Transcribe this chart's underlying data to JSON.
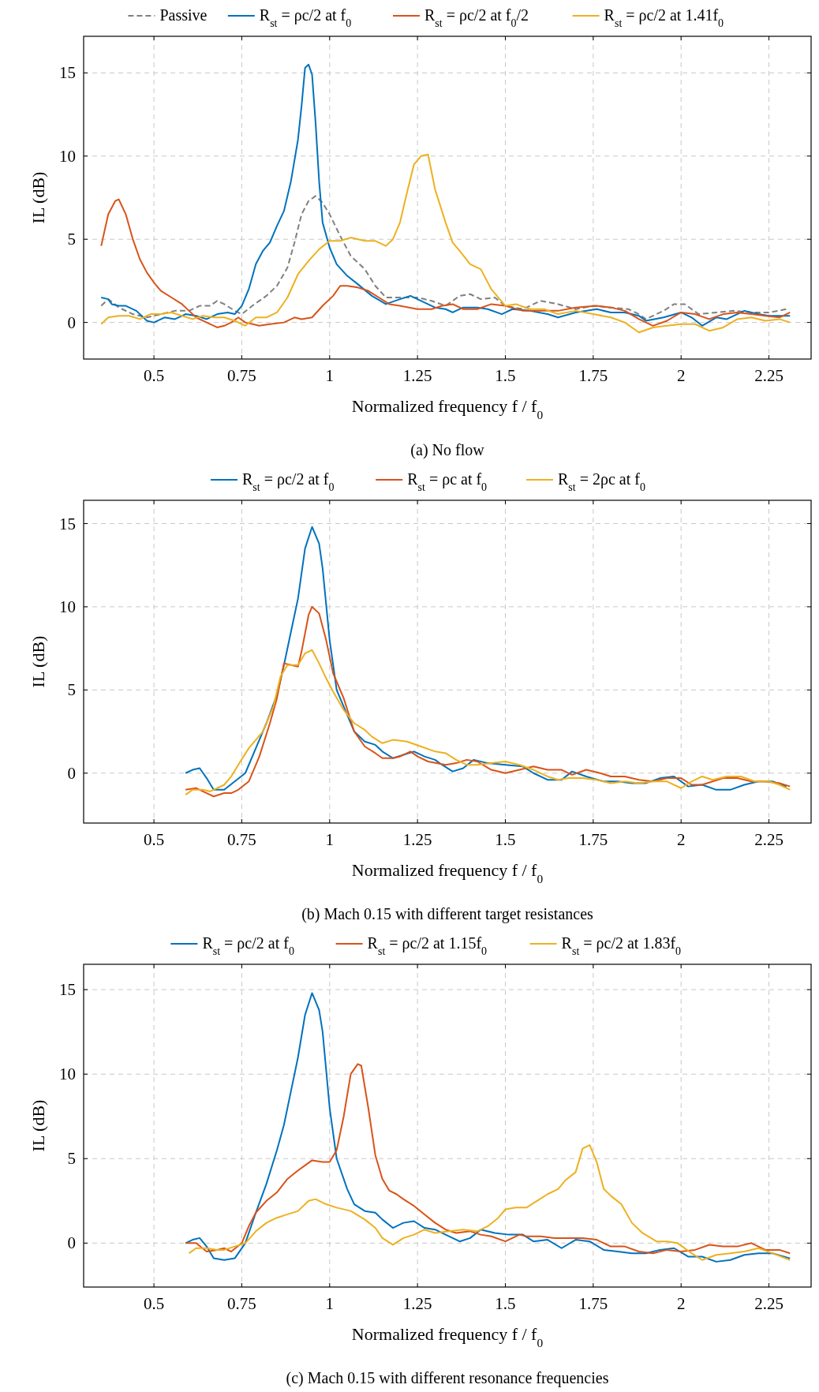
{
  "chart_data": [
    {
      "type": "line",
      "title": "(a) No flow",
      "xlabel": "Normalized frequency f / f$_{0}$",
      "ylabel": "IL (dB)",
      "xlim": [
        0.3,
        2.37
      ],
      "ylim": [
        -2.2,
        17.2
      ],
      "xticks": [
        0.5,
        0.75,
        1,
        1.25,
        1.5,
        1.75,
        2,
        2.25
      ],
      "yticks": [
        0,
        5,
        10,
        15
      ],
      "grid": true,
      "legend": "top",
      "series": [
        {
          "name": "Passive",
          "color": "#808080",
          "line_style": "dashed",
          "x": [
            0.35,
            0.37,
            0.4,
            0.44,
            0.48,
            0.52,
            0.56,
            0.6,
            0.63,
            0.66,
            0.68,
            0.7,
            0.73,
            0.75,
            0.78,
            0.82,
            0.85,
            0.88,
            0.9,
            0.92,
            0.94,
            0.96,
            0.98,
            1.0,
            1.03,
            1.06,
            1.1,
            1.13,
            1.16,
            1.2,
            1.25,
            1.29,
            1.33,
            1.37,
            1.4,
            1.43,
            1.47,
            1.5,
            1.55,
            1.6,
            1.65,
            1.7,
            1.75,
            1.8,
            1.85,
            1.88,
            1.9,
            1.95,
            1.98,
            2.01,
            2.05,
            2.1,
            2.15,
            2.2,
            2.25,
            2.3
          ],
          "values": [
            1.0,
            1.4,
            0.9,
            0.5,
            0.3,
            0.5,
            0.7,
            0.7,
            1.0,
            1.0,
            1.3,
            1.1,
            0.7,
            0.5,
            1.0,
            1.6,
            2.2,
            3.3,
            4.8,
            6.5,
            7.3,
            7.6,
            7.2,
            6.5,
            5.2,
            4.0,
            3.2,
            2.2,
            1.5,
            1.5,
            1.5,
            1.3,
            1.0,
            1.6,
            1.7,
            1.4,
            1.5,
            1.0,
            0.8,
            1.3,
            1.1,
            0.8,
            1.0,
            0.9,
            0.8,
            0.5,
            0.2,
            0.7,
            1.1,
            1.1,
            0.5,
            0.6,
            0.7,
            0.6,
            0.6,
            0.8
          ]
        },
        {
          "name": "R$_{st}$ = ρc/2 at f$_{0}$",
          "color": "#0072bd",
          "x": [
            0.35,
            0.37,
            0.38,
            0.4,
            0.42,
            0.45,
            0.48,
            0.5,
            0.53,
            0.56,
            0.59,
            0.62,
            0.65,
            0.68,
            0.71,
            0.73,
            0.75,
            0.77,
            0.79,
            0.81,
            0.83,
            0.85,
            0.87,
            0.89,
            0.91,
            0.92,
            0.93,
            0.94,
            0.95,
            0.96,
            0.97,
            0.98,
            1.0,
            1.02,
            1.05,
            1.08,
            1.12,
            1.16,
            1.2,
            1.23,
            1.27,
            1.3,
            1.33,
            1.35,
            1.38,
            1.42,
            1.45,
            1.49,
            1.52,
            1.57,
            1.62,
            1.65,
            1.7,
            1.76,
            1.8,
            1.84,
            1.88,
            1.9,
            1.95,
            2.0,
            2.03,
            2.06,
            2.1,
            2.13,
            2.18,
            2.22,
            2.25,
            2.31
          ],
          "values": [
            1.5,
            1.4,
            1.1,
            1.0,
            1.0,
            0.7,
            0.1,
            0.0,
            0.3,
            0.2,
            0.5,
            0.4,
            0.2,
            0.5,
            0.6,
            0.5,
            1.0,
            2.0,
            3.5,
            4.3,
            4.8,
            5.8,
            6.7,
            8.5,
            11.0,
            13.0,
            15.3,
            15.5,
            14.9,
            12.0,
            8.5,
            6.0,
            4.5,
            3.5,
            2.8,
            2.3,
            1.6,
            1.1,
            1.4,
            1.6,
            1.2,
            0.9,
            0.8,
            0.6,
            0.9,
            0.9,
            0.8,
            0.5,
            0.8,
            0.7,
            0.5,
            0.3,
            0.6,
            0.8,
            0.6,
            0.6,
            0.4,
            0.1,
            0.3,
            0.6,
            0.3,
            -0.2,
            0.3,
            0.2,
            0.7,
            0.5,
            0.4,
            0.4
          ]
        },
        {
          "name": "R$_{st}$ = ρc/2 at f$_{0}$/2",
          "color": "#d95319",
          "x": [
            0.35,
            0.37,
            0.39,
            0.4,
            0.42,
            0.44,
            0.46,
            0.48,
            0.5,
            0.52,
            0.55,
            0.58,
            0.6,
            0.62,
            0.65,
            0.68,
            0.7,
            0.72,
            0.74,
            0.76,
            0.8,
            0.83,
            0.87,
            0.9,
            0.92,
            0.95,
            0.98,
            1.01,
            1.03,
            1.05,
            1.08,
            1.11,
            1.14,
            1.17,
            1.2,
            1.25,
            1.29,
            1.32,
            1.35,
            1.38,
            1.42,
            1.46,
            1.5,
            1.55,
            1.6,
            1.65,
            1.7,
            1.76,
            1.8,
            1.84,
            1.88,
            1.92,
            1.96,
            2.0,
            2.04,
            2.08,
            2.12,
            2.16,
            2.2,
            2.24,
            2.28,
            2.31
          ],
          "values": [
            4.6,
            6.5,
            7.3,
            7.4,
            6.5,
            5.0,
            3.8,
            3.0,
            2.4,
            1.9,
            1.5,
            1.1,
            0.7,
            0.3,
            0.0,
            -0.3,
            -0.2,
            0.0,
            0.3,
            0.0,
            -0.2,
            -0.1,
            0.0,
            0.3,
            0.2,
            0.3,
            1.0,
            1.6,
            2.2,
            2.2,
            2.1,
            1.9,
            1.5,
            1.1,
            1.0,
            0.8,
            0.8,
            1.0,
            1.1,
            0.8,
            0.8,
            1.1,
            1.0,
            0.7,
            0.7,
            0.7,
            0.9,
            1.0,
            0.9,
            0.7,
            0.2,
            -0.2,
            0.1,
            0.6,
            0.5,
            0.2,
            0.5,
            0.6,
            0.5,
            0.4,
            0.3,
            0.6
          ]
        },
        {
          "name": "R$_{st}$ = ρc/2 at 1.41f$_{0}$",
          "color": "#edb120",
          "x": [
            0.35,
            0.37,
            0.4,
            0.43,
            0.46,
            0.49,
            0.52,
            0.55,
            0.58,
            0.61,
            0.64,
            0.67,
            0.7,
            0.73,
            0.76,
            0.79,
            0.82,
            0.85,
            0.88,
            0.91,
            0.94,
            0.97,
            1.0,
            1.03,
            1.06,
            1.1,
            1.13,
            1.16,
            1.18,
            1.2,
            1.22,
            1.24,
            1.26,
            1.28,
            1.3,
            1.33,
            1.35,
            1.37,
            1.4,
            1.43,
            1.46,
            1.5,
            1.53,
            1.57,
            1.61,
            1.65,
            1.7,
            1.75,
            1.8,
            1.84,
            1.88,
            1.92,
            1.96,
            2.0,
            2.04,
            2.08,
            2.12,
            2.16,
            2.2,
            2.24,
            2.28,
            2.31
          ],
          "values": [
            -0.1,
            0.3,
            0.4,
            0.4,
            0.2,
            0.5,
            0.5,
            0.6,
            0.4,
            0.2,
            0.4,
            0.3,
            0.3,
            0.1,
            -0.2,
            0.3,
            0.3,
            0.6,
            1.5,
            2.9,
            3.7,
            4.4,
            4.9,
            4.9,
            5.1,
            4.9,
            4.9,
            4.6,
            5.0,
            6.0,
            7.8,
            9.5,
            10.0,
            10.1,
            8.0,
            6.0,
            4.8,
            4.3,
            3.5,
            3.2,
            2.0,
            1.0,
            1.1,
            0.8,
            0.8,
            0.5,
            0.7,
            0.5,
            0.3,
            0.0,
            -0.6,
            -0.3,
            -0.2,
            -0.1,
            -0.1,
            -0.5,
            -0.3,
            0.2,
            0.3,
            0.1,
            0.2,
            0.0
          ]
        }
      ]
    },
    {
      "type": "line",
      "title": "(b) Mach 0.15 with different target resistances",
      "xlabel": "Normalized frequency f / f$_{0}$",
      "ylabel": "IL (dB)",
      "xlim": [
        0.3,
        2.37
      ],
      "ylim": [
        -3,
        16.4
      ],
      "xticks": [
        0.5,
        0.75,
        1,
        1.25,
        1.5,
        1.75,
        2,
        2.25
      ],
      "yticks": [
        0,
        5,
        10,
        15
      ],
      "grid": true,
      "legend": "top",
      "series": [
        {
          "name": "R$_{st}$ = ρc/2 at f$_{0}$",
          "color": "#0072bd",
          "x": [
            0.59,
            0.61,
            0.63,
            0.65,
            0.67,
            0.7,
            0.73,
            0.76,
            0.79,
            0.82,
            0.85,
            0.87,
            0.89,
            0.91,
            0.93,
            0.95,
            0.97,
            0.98,
            1.0,
            1.02,
            1.05,
            1.07,
            1.1,
            1.13,
            1.15,
            1.18,
            1.21,
            1.24,
            1.27,
            1.3,
            1.32,
            1.35,
            1.38,
            1.41,
            1.45,
            1.5,
            1.55,
            1.58,
            1.62,
            1.66,
            1.69,
            1.73,
            1.78,
            1.82,
            1.86,
            1.9,
            1.94,
            1.98,
            2.02,
            2.06,
            2.1,
            2.14,
            2.18,
            2.22,
            2.26,
            2.3
          ],
          "values": [
            0.0,
            0.2,
            0.3,
            -0.3,
            -1.0,
            -1.0,
            -0.5,
            0.0,
            1.5,
            3.0,
            4.7,
            6.5,
            8.5,
            10.5,
            13.5,
            14.8,
            13.8,
            12.3,
            8.0,
            5.0,
            3.5,
            2.5,
            1.9,
            1.7,
            1.3,
            0.9,
            1.1,
            1.3,
            1.0,
            0.8,
            0.5,
            0.1,
            0.3,
            0.8,
            0.6,
            0.5,
            0.4,
            0.0,
            -0.4,
            -0.4,
            0.1,
            -0.2,
            -0.5,
            -0.5,
            -0.6,
            -0.6,
            -0.3,
            -0.2,
            -0.8,
            -0.7,
            -1.0,
            -1.0,
            -0.7,
            -0.5,
            -0.5,
            -0.8
          ]
        },
        {
          "name": "R$_{st}$ = ρc at f$_{0}$",
          "color": "#d95319",
          "x": [
            0.59,
            0.62,
            0.65,
            0.67,
            0.7,
            0.72,
            0.74,
            0.77,
            0.8,
            0.83,
            0.85,
            0.87,
            0.89,
            0.91,
            0.92,
            0.94,
            0.95,
            0.97,
            0.99,
            1.01,
            1.04,
            1.07,
            1.1,
            1.13,
            1.15,
            1.18,
            1.2,
            1.23,
            1.25,
            1.28,
            1.33,
            1.36,
            1.39,
            1.42,
            1.46,
            1.5,
            1.54,
            1.58,
            1.62,
            1.66,
            1.69,
            1.73,
            1.77,
            1.8,
            1.84,
            1.88,
            1.92,
            1.96,
            2.0,
            2.03,
            2.06,
            2.09,
            2.12,
            2.16,
            2.2,
            2.24,
            2.28,
            2.31
          ],
          "values": [
            -1.0,
            -0.9,
            -1.2,
            -1.4,
            -1.2,
            -1.2,
            -1.0,
            -0.5,
            1.0,
            3.0,
            4.5,
            6.6,
            6.5,
            6.4,
            7.3,
            9.5,
            10.0,
            9.6,
            8.0,
            6.0,
            4.5,
            2.5,
            1.6,
            1.2,
            0.9,
            0.9,
            1.0,
            1.3,
            1.0,
            0.7,
            0.5,
            0.6,
            0.8,
            0.7,
            0.2,
            0.0,
            0.2,
            0.4,
            0.2,
            0.2,
            -0.1,
            0.2,
            0.0,
            -0.2,
            -0.2,
            -0.4,
            -0.5,
            -0.3,
            -0.3,
            -0.7,
            -0.7,
            -0.5,
            -0.3,
            -0.3,
            -0.5,
            -0.5,
            -0.6,
            -0.8
          ]
        },
        {
          "name": "R$_{st}$ = 2ρc at f$_{0}$",
          "color": "#edb120",
          "x": [
            0.59,
            0.61,
            0.64,
            0.66,
            0.68,
            0.7,
            0.72,
            0.74,
            0.77,
            0.79,
            0.81,
            0.84,
            0.86,
            0.88,
            0.91,
            0.93,
            0.95,
            0.97,
            0.99,
            1.01,
            1.04,
            1.07,
            1.1,
            1.12,
            1.15,
            1.18,
            1.22,
            1.26,
            1.3,
            1.33,
            1.36,
            1.39,
            1.42,
            1.46,
            1.5,
            1.54,
            1.58,
            1.62,
            1.65,
            1.68,
            1.72,
            1.76,
            1.8,
            1.84,
            1.88,
            1.92,
            1.96,
            2.0,
            2.03,
            2.06,
            2.09,
            2.13,
            2.17,
            2.21,
            2.25,
            2.28,
            2.31
          ],
          "values": [
            -1.3,
            -1.0,
            -1.0,
            -1.1,
            -0.9,
            -0.7,
            -0.2,
            0.5,
            1.5,
            2.0,
            2.5,
            4.0,
            5.8,
            6.5,
            6.5,
            7.2,
            7.4,
            6.6,
            5.7,
            4.9,
            3.8,
            3.0,
            2.6,
            2.2,
            1.8,
            2.0,
            1.9,
            1.6,
            1.3,
            1.2,
            0.8,
            0.5,
            0.5,
            0.6,
            0.7,
            0.5,
            0.2,
            -0.2,
            -0.4,
            -0.3,
            -0.3,
            -0.4,
            -0.6,
            -0.5,
            -0.6,
            -0.5,
            -0.5,
            -0.9,
            -0.5,
            -0.2,
            -0.4,
            -0.2,
            -0.2,
            -0.5,
            -0.5,
            -0.7,
            -1.0
          ]
        }
      ]
    },
    {
      "type": "line",
      "title": "(c) Mach 0.15 with different resonance frequencies",
      "xlabel": "Normalized frequency f / f$_{0}$",
      "ylabel": "IL (dB)",
      "xlim": [
        0.3,
        2.37
      ],
      "ylim": [
        -2.6,
        16.5
      ],
      "xticks": [
        0.5,
        0.75,
        1,
        1.25,
        1.5,
        1.75,
        2,
        2.25
      ],
      "yticks": [
        0,
        5,
        10,
        15
      ],
      "grid": true,
      "legend": "top",
      "series": [
        {
          "name": "R$_{st}$ = ρc/2 at f$_{0}$",
          "color": "#0072bd",
          "x": [
            0.59,
            0.61,
            0.63,
            0.65,
            0.67,
            0.7,
            0.73,
            0.76,
            0.79,
            0.82,
            0.85,
            0.87,
            0.89,
            0.91,
            0.93,
            0.95,
            0.97,
            0.98,
            1.0,
            1.02,
            1.05,
            1.07,
            1.1,
            1.13,
            1.15,
            1.18,
            1.21,
            1.24,
            1.27,
            1.3,
            1.33,
            1.37,
            1.4,
            1.43,
            1.47,
            1.51,
            1.55,
            1.58,
            1.62,
            1.66,
            1.7,
            1.74,
            1.78,
            1.82,
            1.86,
            1.9,
            1.94,
            1.98,
            2.02,
            2.06,
            2.1,
            2.14,
            2.18,
            2.22,
            2.26,
            2.31
          ],
          "values": [
            0.0,
            0.2,
            0.3,
            -0.2,
            -0.9,
            -1.0,
            -0.9,
            0.0,
            1.8,
            3.5,
            5.5,
            7.0,
            9.0,
            11.0,
            13.5,
            14.8,
            13.8,
            12.5,
            8.0,
            5.0,
            3.2,
            2.3,
            1.9,
            1.8,
            1.4,
            0.9,
            1.2,
            1.3,
            0.9,
            0.8,
            0.5,
            0.1,
            0.3,
            0.8,
            0.6,
            0.5,
            0.5,
            0.1,
            0.2,
            -0.3,
            0.2,
            0.1,
            -0.4,
            -0.5,
            -0.6,
            -0.6,
            -0.4,
            -0.3,
            -0.8,
            -0.8,
            -1.1,
            -1.0,
            -0.7,
            -0.6,
            -0.6,
            -0.9
          ]
        },
        {
          "name": "R$_{st}$ = ρc/2 at 1.15f$_{0}$",
          "color": "#d95319",
          "x": [
            0.59,
            0.62,
            0.65,
            0.68,
            0.7,
            0.72,
            0.75,
            0.77,
            0.79,
            0.82,
            0.85,
            0.88,
            0.91,
            0.93,
            0.95,
            0.98,
            1.0,
            1.02,
            1.04,
            1.06,
            1.08,
            1.09,
            1.11,
            1.13,
            1.15,
            1.17,
            1.19,
            1.21,
            1.24,
            1.27,
            1.3,
            1.33,
            1.36,
            1.4,
            1.43,
            1.46,
            1.5,
            1.54,
            1.56,
            1.6,
            1.64,
            1.68,
            1.72,
            1.76,
            1.8,
            1.84,
            1.88,
            1.92,
            1.96,
            2.0,
            2.04,
            2.08,
            2.12,
            2.16,
            2.2,
            2.24,
            2.28,
            2.31
          ],
          "values": [
            0.0,
            0.0,
            -0.5,
            -0.4,
            -0.3,
            -0.5,
            0.0,
            1.0,
            1.8,
            2.5,
            3.0,
            3.8,
            4.3,
            4.6,
            4.9,
            4.8,
            4.8,
            5.5,
            7.5,
            10.0,
            10.6,
            10.5,
            8.0,
            5.2,
            3.8,
            3.1,
            2.9,
            2.6,
            2.2,
            1.7,
            1.2,
            0.8,
            0.6,
            0.7,
            0.5,
            0.4,
            0.1,
            0.5,
            0.4,
            0.4,
            0.3,
            0.3,
            0.3,
            0.2,
            -0.2,
            -0.2,
            -0.5,
            -0.6,
            -0.4,
            -0.5,
            -0.4,
            -0.1,
            -0.2,
            -0.2,
            0.0,
            -0.4,
            -0.4,
            -0.6
          ]
        },
        {
          "name": "R$_{st}$ = ρc/2 at 1.83f$_{0}$",
          "color": "#edb120",
          "x": [
            0.6,
            0.62,
            0.65,
            0.68,
            0.7,
            0.73,
            0.76,
            0.79,
            0.82,
            0.85,
            0.88,
            0.91,
            0.94,
            0.96,
            0.99,
            1.02,
            1.06,
            1.1,
            1.13,
            1.15,
            1.18,
            1.21,
            1.24,
            1.27,
            1.3,
            1.34,
            1.38,
            1.42,
            1.45,
            1.48,
            1.5,
            1.53,
            1.56,
            1.59,
            1.62,
            1.65,
            1.67,
            1.7,
            1.72,
            1.74,
            1.76,
            1.78,
            1.8,
            1.83,
            1.86,
            1.89,
            1.93,
            1.96,
            1.99,
            2.03,
            2.06,
            2.1,
            2.14,
            2.18,
            2.22,
            2.26,
            2.31
          ],
          "values": [
            -0.6,
            -0.3,
            -0.3,
            -0.4,
            -0.4,
            -0.2,
            0.0,
            0.7,
            1.2,
            1.5,
            1.7,
            1.9,
            2.5,
            2.6,
            2.3,
            2.1,
            1.9,
            1.4,
            0.9,
            0.3,
            -0.1,
            0.3,
            0.5,
            0.8,
            0.6,
            0.7,
            0.8,
            0.7,
            1.0,
            1.5,
            2.0,
            2.1,
            2.1,
            2.5,
            2.9,
            3.2,
            3.7,
            4.2,
            5.6,
            5.8,
            4.8,
            3.2,
            2.8,
            2.3,
            1.2,
            0.6,
            0.1,
            0.1,
            0.0,
            -0.6,
            -1.0,
            -0.7,
            -0.6,
            -0.5,
            -0.3,
            -0.6,
            -1.0
          ]
        }
      ]
    }
  ]
}
